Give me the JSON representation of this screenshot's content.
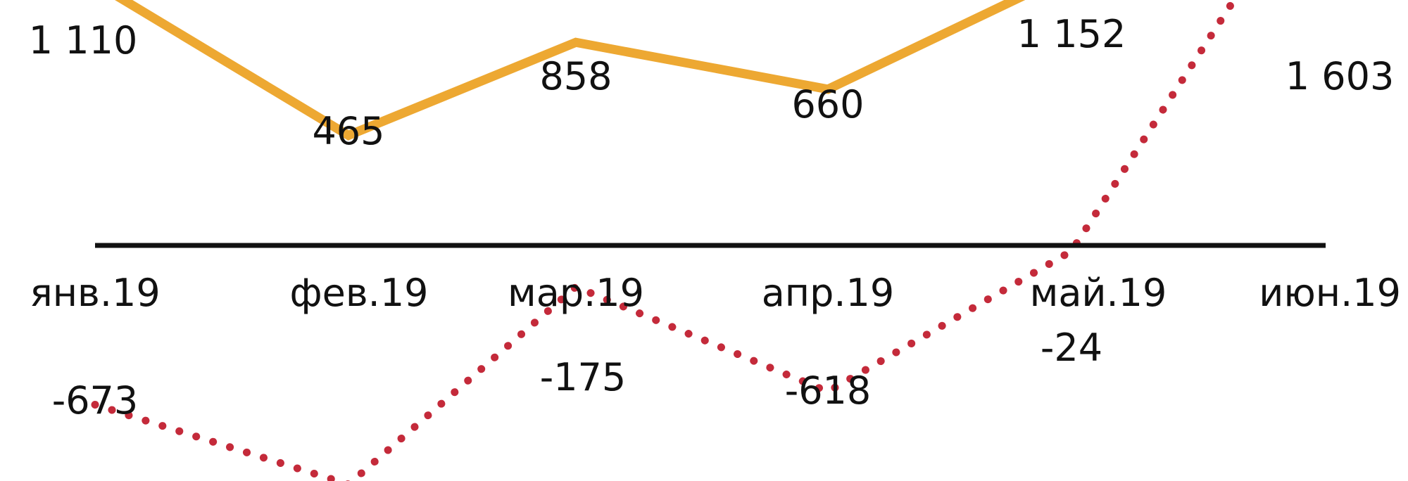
{
  "chart_data": {
    "type": "line",
    "categories": [
      "янв.19",
      "фев.19",
      "мар.19",
      "апр.19",
      "май.19",
      "июн.19"
    ],
    "series": [
      {
        "values": [
          1110,
          465,
          858,
          660,
          1152,
          1603
        ],
        "value_labels": [
          "1 110",
          "465",
          "858",
          "660",
          "1 152",
          ""
        ],
        "style": "solid",
        "color": "#EDA832"
      },
      {
        "values": [
          -673,
          -1010,
          -175,
          -618,
          -24,
          1603
        ],
        "value_labels": [
          "-673",
          "",
          "-175",
          "-618",
          "-24",
          "1 603"
        ],
        "style": "dotted",
        "color": "#C42A3A"
      }
    ],
    "title": "",
    "xlabel": "",
    "ylabel": "",
    "ylim": [
      -1100,
      2200
    ],
    "grid": false,
    "legend": "none",
    "axis_color": "#111111"
  }
}
